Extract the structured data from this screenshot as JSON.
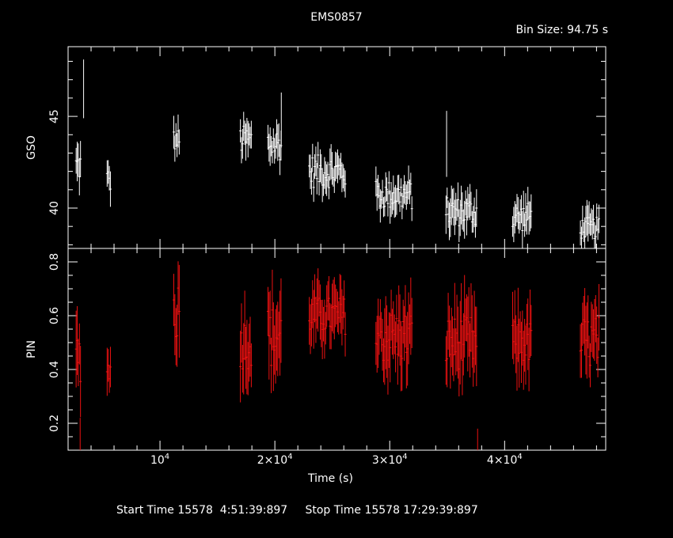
{
  "chart_data": {
    "type": "scatter",
    "title": "EMS0857",
    "subtitle": "Bin Size: 94.75 s",
    "xlabel": "Time (s)",
    "footer": "Start Time 15578  4:51:39:897     Stop Time 15578 17:29:39:897",
    "xlim": [
      2000,
      48800
    ],
    "x_ticks": [
      {
        "value": 10000,
        "mantissa": "10",
        "exp": "4"
      },
      {
        "value": 20000,
        "mantissa": "2×10",
        "exp": "4"
      },
      {
        "value": 30000,
        "mantissa": "3×10",
        "exp": "4"
      },
      {
        "value": 40000,
        "mantissa": "4×10",
        "exp": "4"
      }
    ],
    "panels": [
      {
        "name": "GSO",
        "ylabel": "GSO",
        "ylim": [
          37.8,
          48.8
        ],
        "yticks": [
          40,
          45
        ],
        "color": "#ffffff",
        "segments": [
          {
            "x0": 2700,
            "x1": 3100,
            "mean": 42.3,
            "amp": 0.9,
            "err": 0.9
          },
          {
            "x0": 5400,
            "x1": 5700,
            "mean": 41.5,
            "amp": 0.8,
            "err": 0.9
          },
          {
            "x0": 11200,
            "x1": 11700,
            "mean": 43.7,
            "amp": 0.6,
            "err": 0.8
          },
          {
            "x0": 17000,
            "x1": 18000,
            "mean": 43.7,
            "amp": 0.8,
            "err": 0.9
          },
          {
            "x0": 19400,
            "x1": 20600,
            "mean": 43.5,
            "amp": 0.9,
            "err": 0.9
          },
          {
            "x0": 23000,
            "x1": 26200,
            "mean": 42.0,
            "amp": 0.9,
            "err": 0.8
          },
          {
            "x0": 28800,
            "x1": 32000,
            "mean": 40.7,
            "amp": 0.8,
            "err": 0.8
          },
          {
            "x0": 34900,
            "x1": 37600,
            "mean": 39.8,
            "amp": 0.8,
            "err": 0.9
          },
          {
            "x0": 40700,
            "x1": 42400,
            "mean": 39.5,
            "amp": 0.8,
            "err": 0.9
          },
          {
            "x0": 46600,
            "x1": 48300,
            "mean": 38.9,
            "amp": 0.6,
            "err": 0.9
          }
        ]
      },
      {
        "name": "PIN",
        "ylabel": "PIN",
        "ylim": [
          0.1,
          0.85
        ],
        "yticks": [
          0.2,
          0.4,
          0.6,
          0.8
        ],
        "color": "#ee1111",
        "segments": [
          {
            "x0": 2700,
            "x1": 3100,
            "mean": 0.45,
            "amp": 0.1,
            "err": 0.12
          },
          {
            "x0": 5400,
            "x1": 5700,
            "mean": 0.4,
            "amp": 0.05,
            "err": 0.08
          },
          {
            "x0": 11200,
            "x1": 11700,
            "mean": 0.62,
            "amp": 0.12,
            "err": 0.15
          },
          {
            "x0": 17000,
            "x1": 18000,
            "mean": 0.5,
            "amp": 0.1,
            "err": 0.13
          },
          {
            "x0": 19400,
            "x1": 20600,
            "mean": 0.52,
            "amp": 0.12,
            "err": 0.14
          },
          {
            "x0": 23000,
            "x1": 26200,
            "mean": 0.6,
            "amp": 0.07,
            "err": 0.1
          },
          {
            "x0": 28800,
            "x1": 32000,
            "mean": 0.52,
            "amp": 0.1,
            "err": 0.12
          },
          {
            "x0": 34900,
            "x1": 37600,
            "mean": 0.5,
            "amp": 0.1,
            "err": 0.13
          },
          {
            "x0": 40700,
            "x1": 42400,
            "mean": 0.5,
            "amp": 0.08,
            "err": 0.12
          },
          {
            "x0": 46600,
            "x1": 48300,
            "mean": 0.5,
            "amp": 0.1,
            "err": 0.12
          }
        ]
      }
    ],
    "outliers": [
      {
        "panel": "GSO",
        "x": 3350,
        "y": 46.5,
        "err": 1.6
      },
      {
        "panel": "GSO",
        "x": 20560,
        "y": 44.8,
        "err": 1.5
      },
      {
        "panel": "GSO",
        "x": 34950,
        "y": 43.5,
        "err": 1.8
      },
      {
        "panel": "PIN",
        "x": 37650,
        "y": 0.13,
        "err": 0.05
      },
      {
        "panel": "PIN",
        "x": 3050,
        "y": 0.16,
        "err": 0.06
      }
    ]
  }
}
